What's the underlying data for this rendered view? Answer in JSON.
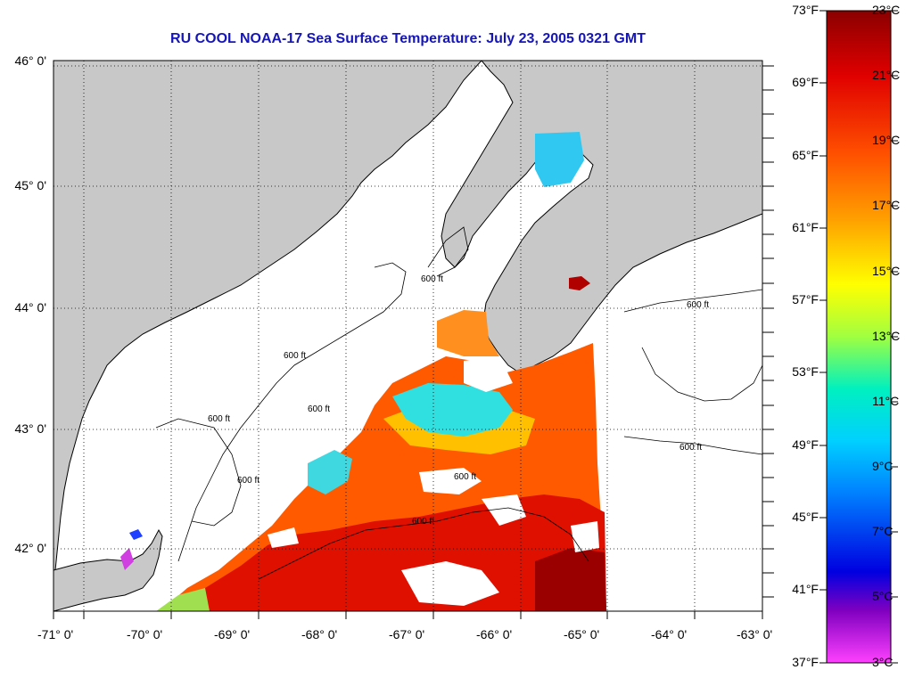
{
  "title": "RU COOL  NOAA-17  Sea Surface Temperature:  July 23, 2005 0321 GMT",
  "map": {
    "lon_range": [
      -71,
      -63
    ],
    "lat_range": [
      41.5,
      46.1
    ],
    "latitude_labels": [
      "46° 0'",
      "45° 0'",
      "44° 0'",
      "43° 0'",
      "42° 0'"
    ],
    "longitude_labels": [
      "-71° 0'",
      "-70° 0'",
      "-69° 0'",
      "-68° 0'",
      "-67° 0'",
      "-66° 0'",
      "-65° 0'",
      "-64° 0'",
      "-63° 0'"
    ],
    "contour_label": "600 ft",
    "grid": "dotted",
    "colors": {
      "land": "#c8c8c8",
      "cloud_mask": "#ffffff",
      "title": "#1616b8"
    }
  },
  "colorbar": {
    "fahrenheit_labels": [
      "73°F",
      "69°F",
      "65°F",
      "61°F",
      "57°F",
      "53°F",
      "49°F",
      "45°F",
      "41°F",
      "37°F"
    ],
    "celsius_labels": [
      "23°C",
      "21°C",
      "19°C",
      "17°C",
      "15°C",
      "13°C",
      "11°C",
      "9°C",
      "7°C",
      "5°C",
      "3°C"
    ],
    "range_celsius": [
      3,
      23
    ],
    "stops": [
      "#8b0000",
      "#ff2000",
      "#ff8000",
      "#ffff00",
      "#00e8e8",
      "#0080ff",
      "#0000e0",
      "#8000c0",
      "#ff40ff"
    ]
  }
}
